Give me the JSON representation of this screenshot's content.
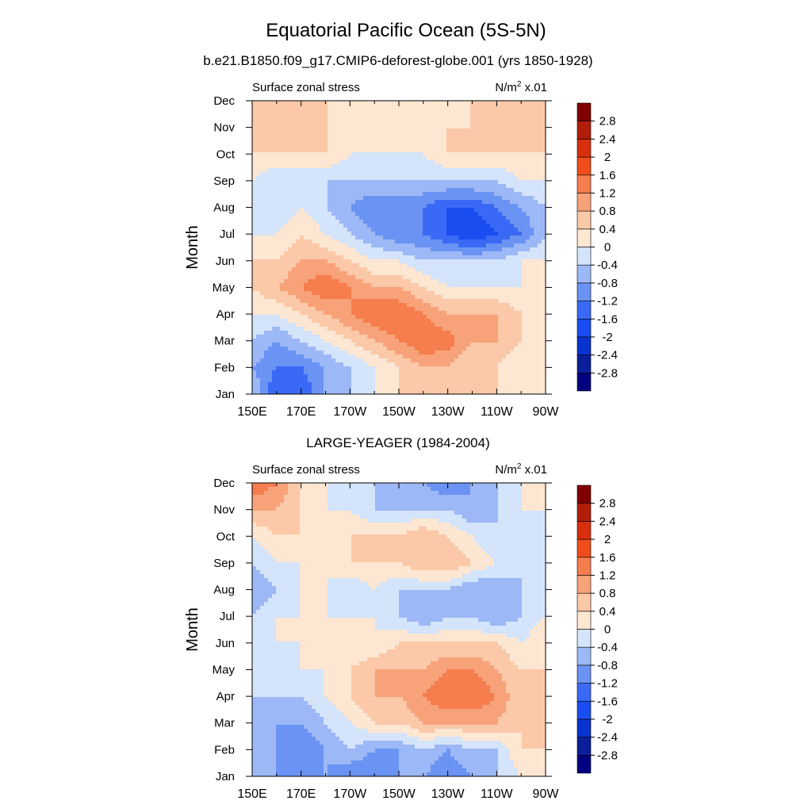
{
  "figure": {
    "title": "Equatorial Pacific Ocean (5S-5N)"
  },
  "colorbar": {
    "levels": [
      -2.8,
      -2.4,
      -2,
      -1.6,
      -1.2,
      -0.8,
      -0.4,
      0,
      0.4,
      0.8,
      1.2,
      1.6,
      2,
      2.4,
      2.8
    ],
    "colors": [
      "#000080",
      "#0a1f9c",
      "#0a34cf",
      "#1a4df0",
      "#3a6af5",
      "#6a93f4",
      "#9db8f6",
      "#d3e4fb",
      "#fde6d2",
      "#fbc8a8",
      "#f8a27a",
      "#f67d4e",
      "#f04d1a",
      "#d8300f",
      "#b01e0a",
      "#800000"
    ]
  },
  "chart_data": [
    {
      "type": "heatmap",
      "title": "b.e21.B1850.f09_g17.CMIP6-deforest-globe.001 (yrs 1850-1928)",
      "left_label": "Surface zonal stress",
      "units_label": "N/m",
      "units_sup": "2",
      "units_suffix": " x.01",
      "ylabel": "Month",
      "x": [
        "150E",
        "170E",
        "170W",
        "150W",
        "130W",
        "110W",
        "90W"
      ],
      "y": [
        "Jan",
        "Feb",
        "Mar",
        "Apr",
        "May",
        "Jun",
        "Jul",
        "Aug",
        "Sep",
        "Oct",
        "Nov",
        "Dec"
      ],
      "xlim_deg_east": [
        150,
        270
      ],
      "values": [
        [
          -0.4,
          -1.6,
          -1.6,
          -0.8,
          -0.4,
          0.0,
          0.4,
          0.4,
          0.8,
          0.4,
          0.4,
          0.0,
          0.0
        ],
        [
          -0.8,
          -1.2,
          -1.2,
          -0.8,
          -0.4,
          0.0,
          0.4,
          0.8,
          0.8,
          0.4,
          0.4,
          0.0,
          0.0
        ],
        [
          -0.4,
          -0.8,
          -0.4,
          0.0,
          0.4,
          0.8,
          1.2,
          1.6,
          1.4,
          0.8,
          0.8,
          0.4,
          0.0
        ],
        [
          0.0,
          0.0,
          0.4,
          0.8,
          1.2,
          1.6,
          1.6,
          1.2,
          0.8,
          0.8,
          0.8,
          0.4,
          0.0
        ],
        [
          0.4,
          0.8,
          1.2,
          1.6,
          1.2,
          0.8,
          0.8,
          0.4,
          0.0,
          0.0,
          0.0,
          0.0,
          0.0
        ],
        [
          0.4,
          0.4,
          0.8,
          0.8,
          0.4,
          0.0,
          0.0,
          -0.4,
          -0.4,
          -0.4,
          -0.4,
          0.0,
          0.0
        ],
        [
          0.0,
          0.0,
          0.4,
          0.0,
          -0.4,
          -0.8,
          -1.2,
          -1.2,
          -1.6,
          -2.0,
          -1.6,
          -1.2,
          -0.4
        ],
        [
          -0.4,
          -0.4,
          0.0,
          -0.4,
          -0.8,
          -1.2,
          -1.2,
          -1.2,
          -1.6,
          -1.6,
          -1.2,
          -0.8,
          -0.4
        ],
        [
          0.0,
          -0.4,
          -0.4,
          -0.4,
          -0.4,
          -0.4,
          -0.4,
          -0.4,
          -0.4,
          -0.4,
          -0.4,
          0.0,
          0.0
        ],
        [
          0.4,
          0.4,
          0.4,
          0.4,
          0.0,
          0.0,
          0.0,
          0.0,
          0.4,
          0.4,
          0.4,
          0.4,
          0.4
        ],
        [
          0.8,
          0.8,
          0.4,
          0.4,
          0.0,
          0.0,
          0.0,
          0.0,
          0.4,
          0.4,
          0.4,
          0.4,
          0.4
        ],
        [
          0.4,
          0.4,
          0.4,
          0.4,
          0.0,
          0.0,
          0.0,
          0.0,
          0.0,
          0.4,
          0.4,
          0.4,
          0.4
        ]
      ]
    },
    {
      "type": "heatmap",
      "title": "LARGE-YEAGER (1984-2004)",
      "left_label": "Surface zonal stress",
      "units_label": "N/m",
      "units_sup": "2",
      "units_suffix": " x.01",
      "ylabel": "Month",
      "x": [
        "150E",
        "170E",
        "170W",
        "150W",
        "130W",
        "110W",
        "90W"
      ],
      "y": [
        "Jan",
        "Feb",
        "Mar",
        "Apr",
        "May",
        "Jun",
        "Jul",
        "Aug",
        "Sep",
        "Oct",
        "Nov",
        "Dec"
      ],
      "xlim_deg_east": [
        150,
        270
      ],
      "values": [
        [
          -0.4,
          -0.8,
          -0.8,
          -0.8,
          -1.2,
          -1.2,
          -0.8,
          -0.8,
          -1.2,
          -0.8,
          -0.4,
          0.0,
          0.4
        ],
        [
          -0.4,
          -0.8,
          -1.2,
          -0.8,
          -0.4,
          -0.8,
          -0.8,
          -0.4,
          -0.8,
          -0.4,
          -0.4,
          0.4,
          0.4
        ],
        [
          -0.4,
          -0.8,
          -0.8,
          -0.4,
          0.0,
          0.4,
          0.4,
          0.8,
          0.8,
          0.8,
          0.8,
          0.4,
          0.4
        ],
        [
          -0.4,
          -0.4,
          -0.4,
          0.0,
          0.4,
          0.8,
          0.8,
          1.2,
          1.6,
          1.6,
          1.2,
          0.4,
          0.4
        ],
        [
          -0.4,
          -0.4,
          0.0,
          0.0,
          0.4,
          0.8,
          0.8,
          0.8,
          1.2,
          1.2,
          0.8,
          0.4,
          0.4
        ],
        [
          -0.4,
          0.0,
          0.0,
          0.0,
          0.0,
          0.0,
          0.4,
          0.4,
          0.4,
          0.4,
          0.4,
          0.0,
          0.4
        ],
        [
          -0.4,
          0.0,
          0.0,
          0.0,
          0.0,
          0.0,
          -0.4,
          -0.8,
          -0.4,
          -0.4,
          -0.8,
          -0.4,
          0.0
        ],
        [
          -0.8,
          -0.4,
          0.0,
          0.0,
          -0.4,
          0.0,
          -0.4,
          -0.4,
          -0.4,
          -0.8,
          -0.8,
          -0.4,
          0.0
        ],
        [
          -0.4,
          0.0,
          0.0,
          0.0,
          0.4,
          0.4,
          0.4,
          0.8,
          0.8,
          0.4,
          0.0,
          -0.4,
          0.0
        ],
        [
          0.0,
          0.4,
          0.4,
          0.4,
          0.4,
          0.4,
          0.4,
          0.8,
          0.4,
          0.0,
          -0.4,
          -0.4,
          0.0
        ],
        [
          0.8,
          0.8,
          0.4,
          0.0,
          0.0,
          -0.4,
          -0.4,
          -0.4,
          -0.4,
          -0.8,
          -0.4,
          0.0,
          0.0
        ],
        [
          1.6,
          1.2,
          0.4,
          0.0,
          -0.4,
          -0.4,
          -0.8,
          -0.8,
          -1.2,
          -0.8,
          -0.4,
          0.0,
          0.0
        ]
      ]
    }
  ]
}
